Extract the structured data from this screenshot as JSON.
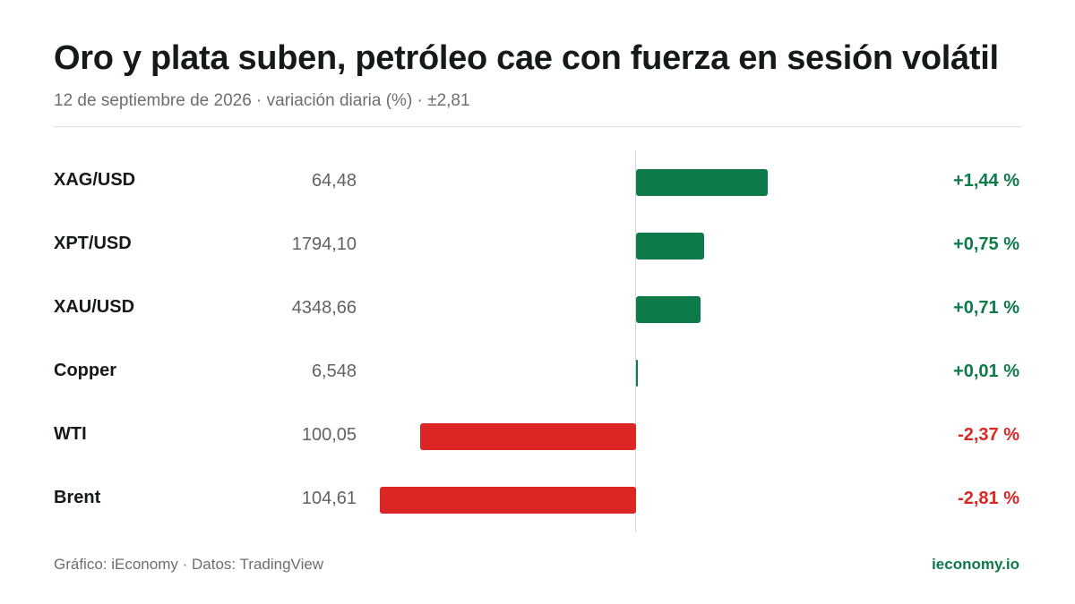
{
  "header": {
    "title": "Oro y plata suben, petróleo cae con fuerza en sesión volátil",
    "subtitle": "12 de septiembre de 2026 · variación diaria (%) · ±2,81"
  },
  "footer": {
    "source": "Gráfico: iEconomy · Datos: TradingView",
    "brand": "ieconomy.io"
  },
  "colors": {
    "positive": "#0d7a4a",
    "negative": "#dc2626"
  },
  "chart_data": {
    "type": "bar",
    "orientation": "horizontal",
    "scale_max_abs": 2.81,
    "rows": [
      {
        "name": "XAG/USD",
        "price": "64,48",
        "value": 1.44,
        "label": "+1,44 %"
      },
      {
        "name": "XPT/USD",
        "price": "1794,10",
        "value": 0.75,
        "label": "+0,75 %"
      },
      {
        "name": "XAU/USD",
        "price": "4348,66",
        "value": 0.71,
        "label": "+0,71 %"
      },
      {
        "name": "Copper",
        "price": "6,548",
        "value": 0.01,
        "label": "+0,01 %"
      },
      {
        "name": "WTI",
        "price": "100,05",
        "value": -2.37,
        "label": "-2,37 %"
      },
      {
        "name": "Brent",
        "price": "104,61",
        "value": -2.81,
        "label": "-2,81 %"
      }
    ]
  }
}
